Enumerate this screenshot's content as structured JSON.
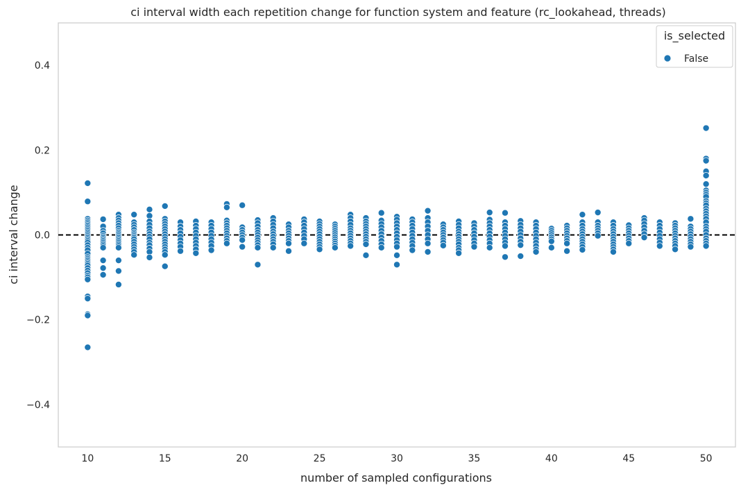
{
  "chart_data": {
    "type": "scatter",
    "title": "ci interval width each repetition change for function system and feature (rc_lookahead, threads)",
    "xlabel": "number of sampled configurations",
    "ylabel": "ci interval change",
    "xlim": [
      8.1,
      51.9
    ],
    "ylim": [
      -0.5,
      0.5
    ],
    "xticks": [
      10,
      15,
      20,
      25,
      30,
      35,
      40,
      45,
      50
    ],
    "yticks": [
      -0.4,
      -0.2,
      0.0,
      0.2,
      0.4
    ],
    "ytick_labels": [
      "−0.4",
      "−0.2",
      "0.0",
      "0.2",
      "0.4"
    ],
    "grid": false,
    "reference_line": {
      "y": 0.0,
      "style": "dashed",
      "color": "#000000"
    },
    "legend": {
      "title": "is_selected",
      "placement": "top-right",
      "entries": [
        {
          "label": "False",
          "color": "#1f77b4"
        }
      ]
    },
    "series": [
      {
        "name": "False",
        "color": "#1f77b4",
        "points": [
          {
            "x": 10,
            "y": [
              0.122,
              0.079,
              0.038,
              0.034,
              0.03,
              0.026,
              0.022,
              0.018,
              0.014,
              0.01,
              0.006,
              0.002,
              -0.002,
              -0.006,
              -0.01,
              -0.014,
              -0.018,
              -0.024,
              -0.03,
              -0.036,
              -0.044,
              -0.052,
              -0.056,
              -0.06,
              -0.064,
              -0.068,
              -0.072,
              -0.078,
              -0.084,
              -0.09,
              -0.096,
              -0.1,
              -0.105,
              -0.145,
              -0.15,
              -0.187,
              -0.19,
              -0.265
            ]
          },
          {
            "x": 11,
            "y": [
              0.037,
              0.02,
              0.01,
              0.004,
              -0.002,
              -0.006,
              -0.01,
              -0.014,
              -0.018,
              -0.022,
              -0.026,
              -0.03,
              -0.06,
              -0.078,
              -0.094
            ]
          },
          {
            "x": 12,
            "y": [
              0.048,
              0.04,
              0.034,
              0.028,
              0.022,
              0.016,
              0.01,
              0.006,
              0.002,
              -0.002,
              -0.006,
              -0.01,
              -0.014,
              -0.018,
              -0.022,
              -0.026,
              -0.03,
              -0.06,
              -0.085,
              -0.117
            ]
          },
          {
            "x": 13,
            "y": [
              0.048,
              0.03,
              0.024,
              0.018,
              0.012,
              0.006,
              0.002,
              -0.002,
              -0.006,
              -0.01,
              -0.016,
              -0.022,
              -0.028,
              -0.034,
              -0.04,
              -0.047
            ]
          },
          {
            "x": 14,
            "y": [
              0.06,
              0.045,
              0.032,
              0.024,
              0.016,
              0.008,
              0.002,
              -0.004,
              -0.01,
              -0.018,
              -0.024,
              -0.032,
              -0.04,
              -0.053
            ]
          },
          {
            "x": 15,
            "y": [
              0.068,
              0.038,
              0.032,
              0.026,
              0.02,
              0.014,
              0.008,
              0.002,
              -0.004,
              -0.01,
              -0.016,
              -0.022,
              -0.028,
              -0.034,
              -0.04,
              -0.047,
              -0.074
            ]
          },
          {
            "x": 16,
            "y": [
              0.03,
              0.02,
              0.012,
              0.004,
              -0.004,
              -0.012,
              -0.02,
              -0.028,
              -0.038
            ]
          },
          {
            "x": 17,
            "y": [
              0.032,
              0.022,
              0.014,
              0.006,
              -0.002,
              -0.01,
              -0.018,
              -0.026,
              -0.034,
              -0.043
            ]
          },
          {
            "x": 18,
            "y": [
              0.03,
              0.022,
              0.014,
              0.006,
              -0.002,
              -0.01,
              -0.018,
              -0.026,
              -0.036
            ]
          },
          {
            "x": 19,
            "y": [
              0.073,
              0.065,
              0.034,
              0.028,
              0.022,
              0.016,
              0.01,
              0.004,
              -0.002,
              -0.008,
              -0.014,
              -0.02
            ]
          },
          {
            "x": 20,
            "y": [
              0.07,
              0.018,
              0.012,
              0.006,
              0.0,
              -0.006,
              -0.012,
              -0.028
            ]
          },
          {
            "x": 21,
            "y": [
              0.035,
              0.028,
              0.02,
              0.012,
              0.006,
              0.0,
              -0.006,
              -0.012,
              -0.018,
              -0.024,
              -0.03,
              -0.07
            ]
          },
          {
            "x": 22,
            "y": [
              0.04,
              0.032,
              0.024,
              0.016,
              0.008,
              0.002,
              -0.004,
              -0.01,
              -0.016,
              -0.022,
              -0.03
            ]
          },
          {
            "x": 23,
            "y": [
              0.025,
              0.018,
              0.01,
              0.004,
              -0.002,
              -0.008,
              -0.014,
              -0.02,
              -0.038
            ]
          },
          {
            "x": 24,
            "y": [
              0.037,
              0.03,
              0.022,
              0.014,
              0.006,
              -0.002,
              -0.01,
              -0.02
            ]
          },
          {
            "x": 25,
            "y": [
              0.032,
              0.026,
              0.02,
              0.014,
              0.008,
              0.002,
              -0.004,
              -0.01,
              -0.016,
              -0.022,
              -0.028,
              -0.034
            ]
          },
          {
            "x": 26,
            "y": [
              0.025,
              0.02,
              0.015,
              0.01,
              0.005,
              0.0,
              -0.005,
              -0.01,
              -0.015,
              -0.02,
              -0.025,
              -0.03
            ]
          },
          {
            "x": 27,
            "y": [
              0.048,
              0.04,
              0.032,
              0.024,
              0.016,
              0.01,
              0.004,
              -0.002,
              -0.008,
              -0.014,
              -0.02,
              -0.026
            ]
          },
          {
            "x": 28,
            "y": [
              0.04,
              0.032,
              0.026,
              0.02,
              0.014,
              0.008,
              0.002,
              -0.004,
              -0.01,
              -0.016,
              -0.022,
              -0.048
            ]
          },
          {
            "x": 29,
            "y": [
              0.052,
              0.034,
              0.026,
              0.018,
              0.01,
              0.002,
              -0.006,
              -0.014,
              -0.022,
              -0.03
            ]
          },
          {
            "x": 30,
            "y": [
              0.043,
              0.036,
              0.028,
              0.02,
              0.012,
              0.004,
              -0.004,
              -0.012,
              -0.02,
              -0.028,
              -0.048,
              -0.07
            ]
          },
          {
            "x": 31,
            "y": [
              0.037,
              0.03,
              0.022,
              0.014,
              0.006,
              -0.002,
              -0.01,
              -0.018,
              -0.026,
              -0.036
            ]
          },
          {
            "x": 32,
            "y": [
              0.057,
              0.04,
              0.03,
              0.02,
              0.01,
              0.0,
              -0.01,
              -0.02,
              -0.04
            ]
          },
          {
            "x": 33,
            "y": [
              0.025,
              0.018,
              0.012,
              0.006,
              0.0,
              -0.006,
              -0.012,
              -0.018,
              -0.025
            ]
          },
          {
            "x": 34,
            "y": [
              0.032,
              0.024,
              0.016,
              0.008,
              0.002,
              -0.004,
              -0.01,
              -0.016,
              -0.022,
              -0.03,
              -0.036,
              -0.043
            ]
          },
          {
            "x": 35,
            "y": [
              0.028,
              0.02,
              0.012,
              0.004,
              -0.004,
              -0.012,
              -0.02,
              -0.028
            ]
          },
          {
            "x": 36,
            "y": [
              0.053,
              0.036,
              0.028,
              0.02,
              0.012,
              0.004,
              -0.004,
              -0.012,
              -0.02,
              -0.03
            ]
          },
          {
            "x": 37,
            "y": [
              0.052,
              0.03,
              0.022,
              0.014,
              0.006,
              -0.002,
              -0.01,
              -0.018,
              -0.026,
              -0.052
            ]
          },
          {
            "x": 38,
            "y": [
              0.033,
              0.024,
              0.016,
              0.008,
              0.0,
              -0.008,
              -0.016,
              -0.024,
              -0.05
            ]
          },
          {
            "x": 39,
            "y": [
              0.03,
              0.022,
              0.014,
              0.006,
              -0.002,
              -0.01,
              -0.018,
              -0.026,
              -0.034,
              -0.04
            ]
          },
          {
            "x": 40,
            "y": [
              0.015,
              0.01,
              0.005,
              0.0,
              -0.005,
              -0.01,
              -0.015,
              -0.03
            ]
          },
          {
            "x": 41,
            "y": [
              0.022,
              0.016,
              0.01,
              0.004,
              -0.002,
              -0.008,
              -0.014,
              -0.02,
              -0.038
            ]
          },
          {
            "x": 42,
            "y": [
              0.048,
              0.03,
              0.022,
              0.014,
              0.008,
              0.002,
              -0.004,
              -0.01,
              -0.016,
              -0.022,
              -0.028,
              -0.035
            ]
          },
          {
            "x": 43,
            "y": [
              0.053,
              0.03,
              0.022,
              0.016,
              0.01,
              0.004,
              -0.002
            ]
          },
          {
            "x": 44,
            "y": [
              0.03,
              0.022,
              0.014,
              0.008,
              0.002,
              -0.004,
              -0.01,
              -0.016,
              -0.022,
              -0.028,
              -0.034,
              -0.04
            ]
          },
          {
            "x": 45,
            "y": [
              0.023,
              0.016,
              0.01,
              0.004,
              -0.002,
              -0.008,
              -0.014,
              -0.02
            ]
          },
          {
            "x": 46,
            "y": [
              0.04,
              0.034,
              0.026,
              0.018,
              0.01,
              0.002,
              -0.006
            ]
          },
          {
            "x": 47,
            "y": [
              0.03,
              0.022,
              0.014,
              0.006,
              -0.002,
              -0.01,
              -0.018,
              -0.026
            ]
          },
          {
            "x": 48,
            "y": [
              0.028,
              0.022,
              0.016,
              0.01,
              0.004,
              -0.002,
              -0.008,
              -0.014,
              -0.02,
              -0.026,
              -0.034
            ]
          },
          {
            "x": 49,
            "y": [
              0.038,
              0.02,
              0.014,
              0.008,
              0.002,
              -0.004,
              -0.01,
              -0.016,
              -0.022,
              -0.028
            ]
          },
          {
            "x": 50,
            "y": [
              0.252,
              0.18,
              0.175,
              0.15,
              0.14,
              0.12,
              0.105,
              0.1,
              0.095,
              0.09,
              0.08,
              0.075,
              0.07,
              0.062,
              0.056,
              0.05,
              0.044,
              0.038,
              0.03,
              0.02,
              0.014,
              0.008,
              0.0,
              -0.008,
              -0.014,
              -0.02,
              -0.026
            ]
          }
        ]
      }
    ]
  }
}
